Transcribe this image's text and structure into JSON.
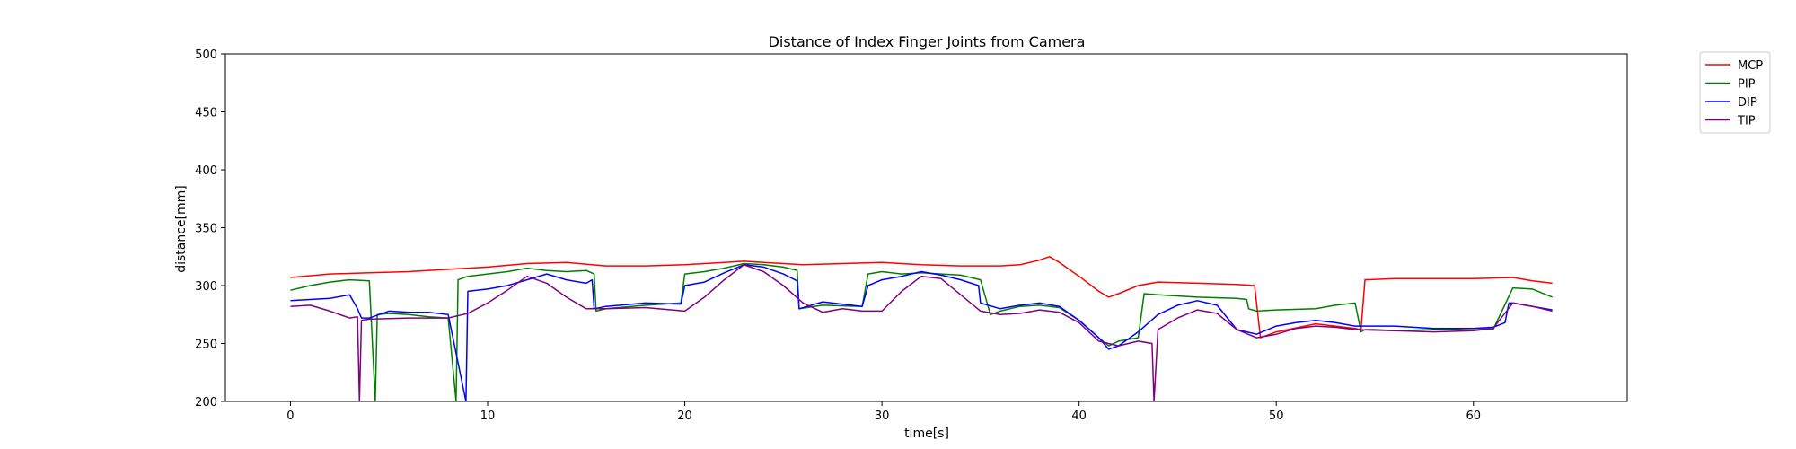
{
  "chart_data": {
    "type": "line",
    "title": "Distance of Index Finger Joints from Camera",
    "xlabel": "time[s]",
    "ylabel": "distance[mm]",
    "xlim": [
      -3.3,
      67.8
    ],
    "ylim": [
      200,
      500
    ],
    "xticks": [
      0,
      10,
      20,
      30,
      40,
      50,
      60
    ],
    "yticks": [
      200,
      250,
      300,
      350,
      400,
      450,
      500
    ],
    "grid": false,
    "legend_position": "outside-top-right",
    "series": [
      {
        "name": "MCP",
        "color": "#ff0000",
        "x": [
          0,
          2,
          4,
          6,
          8,
          10,
          12,
          14,
          16,
          18,
          20,
          22,
          23,
          24,
          26,
          28,
          30,
          32,
          34,
          36,
          37,
          38,
          38.5,
          39,
          40,
          41,
          41.5,
          42,
          43,
          44,
          46,
          48,
          48.9,
          49.2,
          50,
          52,
          54,
          54.3,
          54.5,
          56,
          58,
          60,
          62,
          63,
          64
        ],
        "y": [
          307,
          310,
          311,
          312,
          314,
          316,
          319,
          320,
          317,
          317,
          318,
          320,
          321,
          320,
          318,
          319,
          320,
          318,
          317,
          317,
          318,
          322,
          325,
          320,
          308,
          295,
          290,
          293,
          300,
          303,
          302,
          301,
          300,
          255,
          260,
          267,
          263,
          262,
          305,
          306,
          306,
          306,
          307,
          304,
          302
        ]
      },
      {
        "name": "PIP",
        "color": "#008000",
        "x": [
          0,
          1,
          2,
          3,
          4,
          4.3,
          4.4,
          5,
          6,
          7,
          8,
          8.4,
          8.5,
          9,
          10,
          11,
          12,
          13,
          14,
          15,
          15.4,
          15.5,
          16,
          18,
          19.8,
          20,
          21,
          22,
          23,
          24,
          25,
          25.7,
          25.8,
          27,
          29,
          29.3,
          30,
          31,
          32,
          33,
          34,
          35,
          35.5,
          36,
          37,
          38,
          39,
          40,
          41,
          41.5,
          42,
          43,
          43.3,
          44,
          46,
          48,
          48.5,
          48.6,
          49,
          50,
          52,
          53,
          54,
          54.3,
          54.5,
          55,
          56,
          58,
          60,
          61,
          62,
          63,
          64
        ],
        "y": [
          296,
          300,
          303,
          305,
          304,
          200,
          275,
          276,
          275,
          273,
          272,
          200,
          305,
          308,
          310,
          312,
          315,
          313,
          312,
          313,
          310,
          278,
          280,
          283,
          285,
          310,
          312,
          315,
          319,
          318,
          316,
          313,
          280,
          283,
          282,
          310,
          312,
          310,
          311,
          310,
          309,
          305,
          275,
          278,
          282,
          283,
          281,
          270,
          255,
          248,
          252,
          255,
          293,
          292,
          290,
          289,
          288,
          280,
          278,
          279,
          280,
          283,
          285,
          260,
          262,
          262,
          261,
          262,
          263,
          262,
          298,
          297,
          290
        ]
      },
      {
        "name": "DIP",
        "color": "#0000ff",
        "x": [
          0,
          1,
          2,
          3,
          3.4,
          3.6,
          4,
          5,
          6,
          7,
          8,
          8.9,
          9,
          10,
          11,
          12,
          13,
          14,
          15,
          15.3,
          15.4,
          16,
          18,
          19.8,
          20,
          21,
          22,
          23,
          24,
          25,
          25.7,
          25.8,
          27,
          29,
          29.3,
          30,
          31,
          32,
          33,
          34,
          34.9,
          35,
          36,
          37,
          38,
          39,
          40,
          41,
          41.5,
          42,
          43,
          44,
          45,
          46,
          47,
          48,
          49,
          50,
          51,
          52,
          53,
          54,
          56,
          58,
          60,
          61,
          61.6,
          61.8,
          62,
          63,
          64
        ],
        "y": [
          287,
          288,
          289,
          292,
          280,
          272,
          272,
          278,
          277,
          277,
          275,
          200,
          295,
          297,
          300,
          305,
          310,
          305,
          302,
          305,
          280,
          282,
          285,
          284,
          300,
          303,
          311,
          318,
          316,
          310,
          304,
          280,
          286,
          282,
          300,
          305,
          308,
          312,
          309,
          305,
          300,
          285,
          280,
          283,
          285,
          282,
          270,
          255,
          245,
          248,
          260,
          275,
          283,
          287,
          283,
          262,
          258,
          265,
          268,
          270,
          268,
          265,
          265,
          263,
          263,
          264,
          268,
          285,
          285,
          282,
          279
        ]
      },
      {
        "name": "TIP",
        "color": "#800080",
        "x": [
          0,
          1,
          2,
          3,
          3.4,
          3.5,
          3.6,
          4,
          6,
          8,
          9,
          10,
          11,
          12,
          13,
          14,
          15,
          16,
          18,
          20,
          21,
          22,
          23,
          24,
          25,
          26,
          27,
          28,
          29,
          30,
          31,
          32,
          33,
          34,
          35,
          36,
          37,
          38,
          39,
          40,
          41,
          42,
          43,
          43.7,
          43.8,
          44,
          45,
          46,
          47,
          48,
          49,
          50,
          51,
          52,
          53,
          54,
          56,
          58,
          60,
          61,
          62,
          63,
          64
        ],
        "y": [
          282,
          283,
          278,
          272,
          273,
          200,
          270,
          271,
          272,
          272,
          276,
          285,
          296,
          308,
          302,
          290,
          280,
          280,
          281,
          278,
          290,
          305,
          318,
          312,
          300,
          285,
          277,
          280,
          278,
          278,
          295,
          308,
          306,
          292,
          278,
          275,
          276,
          279,
          277,
          268,
          252,
          248,
          252,
          250,
          200,
          262,
          272,
          279,
          276,
          262,
          255,
          258,
          263,
          265,
          264,
          262,
          261,
          260,
          261,
          263,
          285,
          282,
          278
        ]
      }
    ]
  }
}
